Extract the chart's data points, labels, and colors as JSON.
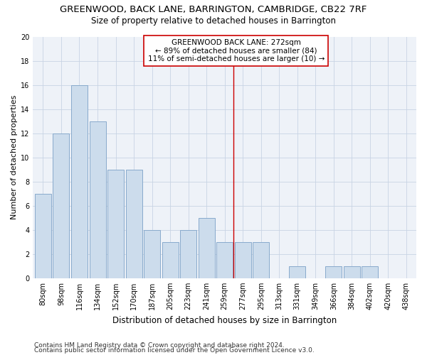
{
  "title1": "GREENWOOD, BACK LANE, BARRINGTON, CAMBRIDGE, CB22 7RF",
  "title2": "Size of property relative to detached houses in Barrington",
  "xlabel": "Distribution of detached houses by size in Barrington",
  "ylabel": "Number of detached properties",
  "categories": [
    "80sqm",
    "98sqm",
    "116sqm",
    "134sqm",
    "152sqm",
    "170sqm",
    "187sqm",
    "205sqm",
    "223sqm",
    "241sqm",
    "259sqm",
    "277sqm",
    "295sqm",
    "313sqm",
    "331sqm",
    "349sqm",
    "366sqm",
    "384sqm",
    "402sqm",
    "420sqm",
    "438sqm"
  ],
  "bar_heights": [
    7,
    12,
    16,
    13,
    9,
    9,
    4,
    3,
    4,
    5,
    3,
    3,
    3,
    0,
    1,
    0,
    1,
    1,
    1,
    0,
    0
  ],
  "bar_color": "#ccdcec",
  "bar_edgecolor": "#88aacc",
  "bar_linewidth": 0.7,
  "vline_x_index": 11,
  "vline_color": "#cc0000",
  "annotation_title": "GREENWOOD BACK LANE: 272sqm",
  "annotation_line2": "← 89% of detached houses are smaller (84)",
  "annotation_line3": "11% of semi-detached houses are larger (10) →",
  "annotation_border_color": "#cc0000",
  "ylim": [
    0,
    20
  ],
  "yticks": [
    0,
    2,
    4,
    6,
    8,
    10,
    12,
    14,
    16,
    18,
    20
  ],
  "grid_color": "#c8d4e4",
  "background_color": "#eef2f8",
  "footer1": "Contains HM Land Registry data © Crown copyright and database right 2024.",
  "footer2": "Contains public sector information licensed under the Open Government Licence v3.0.",
  "title1_fontsize": 9.5,
  "title2_fontsize": 8.5,
  "xlabel_fontsize": 8.5,
  "ylabel_fontsize": 8,
  "tick_fontsize": 7,
  "annot_fontsize": 7.5,
  "footer_fontsize": 6.5
}
